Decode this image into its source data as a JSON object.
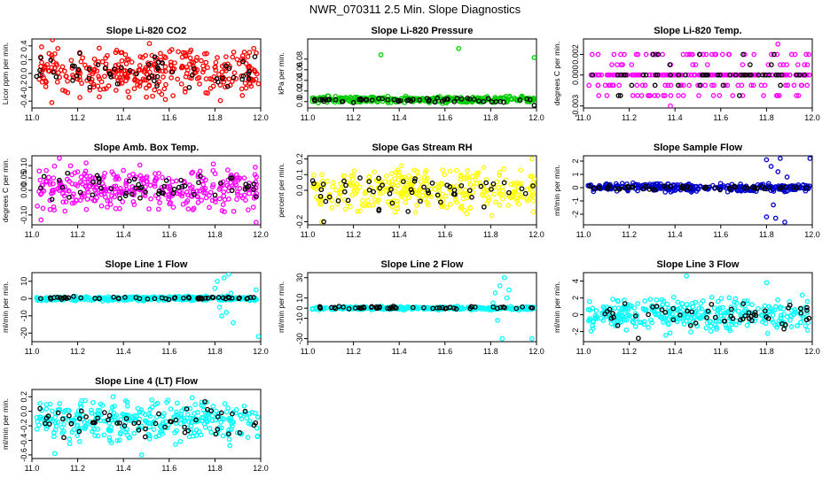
{
  "page_title": "NWR_070311  2.5 Min. Slope Diagnostics",
  "chart_data": [
    {
      "type": "scatter",
      "title": "Slope Li-820 CO2",
      "ylabel": "Licor ppm per min.",
      "xlim": [
        11.0,
        12.0
      ],
      "ylim": [
        -0.5,
        0.5
      ],
      "xticks": [
        11.0,
        11.2,
        11.4,
        11.6,
        11.8,
        12.0
      ],
      "xtick_labels": [
        "11.0",
        "11.2",
        "11.4",
        "11.6",
        "11.8",
        "12.0"
      ],
      "yticks": [
        -0.4,
        -0.2,
        0.0,
        0.2,
        0.4
      ],
      "ytick_labels": [
        "-0.4",
        "-0.2",
        "0.0",
        "0.2",
        "0.4"
      ],
      "series": [
        {
          "name": "all",
          "color": "#ff0000",
          "n": 340,
          "center": 0.02,
          "spread": 0.42,
          "seed": 11,
          "outliers": []
        },
        {
          "name": "selected",
          "color": "#000000",
          "n": 55,
          "center": 0.03,
          "spread": 0.3,
          "seed": 12,
          "outliers": []
        }
      ]
    },
    {
      "type": "scatter",
      "title": "Slope Li-820 Pressure",
      "ylabel": "kPa per min.",
      "xlim": [
        11.0,
        12.0
      ],
      "ylim": [
        -0.012,
        0.118
      ],
      "xticks": [
        11.0,
        11.2,
        11.4,
        11.6,
        11.8,
        12.0
      ],
      "xtick_labels": [
        "11.0",
        "11.2",
        "11.4",
        "11.6",
        "11.8",
        "12.0"
      ],
      "yticks": [
        0.0,
        0.02,
        0.04,
        0.06,
        0.08
      ],
      "ytick_labels": [
        "0.0",
        "0.02",
        "0.04",
        "0.06",
        "0.08"
      ],
      "series": [
        {
          "name": "all",
          "color": "#00cc00",
          "n": 330,
          "center": 0.004,
          "spread": 0.007,
          "seed": 21,
          "outliers": [
            [
              11.32,
              0.088
            ],
            [
              11.66,
              0.1
            ],
            [
              11.99,
              0.083
            ]
          ]
        },
        {
          "name": "selected",
          "color": "#000000",
          "n": 55,
          "center": 0.003,
          "spread": 0.005,
          "seed": 22,
          "outliers": [
            [
              11.99,
              -0.007
            ]
          ]
        }
      ]
    },
    {
      "type": "scatter",
      "title": "Slope Li-820 Temp.",
      "ylabel": "degrees C per min.",
      "xlim": [
        11.0,
        12.0
      ],
      "ylim": [
        -0.0032,
        0.0035
      ],
      "xticks": [
        11.0,
        11.2,
        11.4,
        11.6,
        11.8,
        12.0
      ],
      "xtick_labels": [
        "11.0",
        "11.2",
        "11.4",
        "11.6",
        "11.8",
        "12.0"
      ],
      "yticks": [
        -0.003,
        0.0,
        0.002
      ],
      "ytick_labels": [
        "-0.003",
        "0.000",
        "0.002"
      ],
      "levels": [
        -0.002,
        -0.001,
        0.0,
        0.001,
        0.002
      ],
      "series": [
        {
          "name": "all",
          "color": "#ff00ff",
          "n": 300,
          "center": 0,
          "spread": 0,
          "seed": 31,
          "quantized": true,
          "outliers": [
            [
              11.38,
              -0.003
            ],
            [
              11.85,
              0.003
            ]
          ]
        },
        {
          "name": "selected",
          "color": "#000000",
          "n": 55,
          "center": 0,
          "spread": 0,
          "seed": 32,
          "quantized": true,
          "outliers": []
        }
      ]
    },
    {
      "type": "scatter",
      "title": "Slope Amb. Box Temp.",
      "ylabel": "degrees C per min.",
      "xlim": [
        11.0,
        12.0
      ],
      "ylim": [
        -0.14,
        0.14
      ],
      "xticks": [
        11.0,
        11.2,
        11.4,
        11.6,
        11.8,
        12.0
      ],
      "xtick_labels": [
        "11.0",
        "11.2",
        "11.4",
        "11.6",
        "11.8",
        "12.0"
      ],
      "yticks": [
        -0.1,
        0.0,
        0.05,
        0.1
      ],
      "ytick_labels": [
        "-0.10",
        "0.00",
        "0.05",
        "0.10"
      ],
      "series": [
        {
          "name": "all",
          "color": "#ff00ff",
          "n": 340,
          "center": 0.005,
          "spread": 0.1,
          "seed": 41,
          "outliers": [
            [
              11.04,
              -0.12
            ],
            [
              11.12,
              0.13
            ],
            [
              11.98,
              -0.13
            ]
          ]
        },
        {
          "name": "selected",
          "color": "#000000",
          "n": 55,
          "center": 0.01,
          "spread": 0.06,
          "seed": 42,
          "outliers": []
        }
      ]
    },
    {
      "type": "scatter",
      "title": "Slope Gas Stream RH",
      "ylabel": "percent per min.",
      "xlim": [
        11.0,
        12.0
      ],
      "ylim": [
        -0.22,
        0.22
      ],
      "xticks": [
        11.0,
        11.2,
        11.4,
        11.6,
        11.8,
        12.0
      ],
      "xtick_labels": [
        "11.0",
        "11.2",
        "11.4",
        "11.6",
        "11.8",
        "12.0"
      ],
      "yticks": [
        -0.2,
        0.0,
        0.1,
        0.2
      ],
      "ytick_labels": [
        "-0.2",
        "0.0",
        "0.1",
        "0.2"
      ],
      "series": [
        {
          "name": "all",
          "color": "#ffff00",
          "n": 330,
          "center": 0.0,
          "spread": 0.16,
          "seed": 51,
          "outliers": [
            [
              11.06,
              -0.2
            ],
            [
              11.98,
              0.2
            ]
          ]
        },
        {
          "name": "selected",
          "color": "#000000",
          "n": 55,
          "center": 0.0,
          "spread": 0.14,
          "seed": 52,
          "outliers": [
            [
              11.07,
              -0.2
            ]
          ]
        }
      ]
    },
    {
      "type": "scatter",
      "title": "Slope Sample Flow",
      "ylabel": "ml/min per min.",
      "xlim": [
        11.0,
        12.0
      ],
      "ylim": [
        -2.8,
        2.4
      ],
      "xticks": [
        11.0,
        11.2,
        11.4,
        11.6,
        11.8,
        12.0
      ],
      "xtick_labels": [
        "11.0",
        "11.2",
        "11.4",
        "11.6",
        "11.8",
        "12.0"
      ],
      "yticks": [
        -2,
        -1,
        0,
        1,
        2
      ],
      "ytick_labels": [
        "-2",
        "-1",
        "0",
        "1",
        "2"
      ],
      "series": [
        {
          "name": "all",
          "color": "#0000cc",
          "n": 330,
          "center": 0.0,
          "spread": 0.35,
          "seed": 61,
          "outliers": [
            [
              11.8,
              2.1
            ],
            [
              11.82,
              1.6
            ],
            [
              11.84,
              -2.3
            ],
            [
              11.86,
              2.2
            ],
            [
              11.88,
              -2.6
            ],
            [
              11.85,
              1.2
            ],
            [
              11.8,
              -2.2
            ],
            [
              11.83,
              -1.3
            ],
            [
              11.99,
              2.2
            ],
            [
              11.89,
              0.8
            ]
          ]
        },
        {
          "name": "selected",
          "color": "#000000",
          "n": 55,
          "center": 0.0,
          "spread": 0.2,
          "seed": 62,
          "outliers": []
        }
      ]
    },
    {
      "type": "scatter",
      "title": "Slope Line 1 Flow",
      "ylabel": "ml/min per min.",
      "xlim": [
        11.0,
        12.0
      ],
      "ylim": [
        -25,
        15
      ],
      "xticks": [
        11.0,
        11.2,
        11.4,
        11.6,
        11.8,
        12.0
      ],
      "xtick_labels": [
        "11.0",
        "11.2",
        "11.4",
        "11.6",
        "11.8",
        "12.0"
      ],
      "yticks": [
        -20,
        -10,
        0,
        10
      ],
      "ytick_labels": [
        "-20",
        "-10",
        "0",
        "10"
      ],
      "series": [
        {
          "name": "all",
          "color": "#00ffff",
          "n": 330,
          "center": 0.0,
          "spread": 1.5,
          "seed": 71,
          "outliers": [
            [
              11.8,
              6
            ],
            [
              11.82,
              -5
            ],
            [
              11.84,
              12
            ],
            [
              11.86,
              14
            ],
            [
              11.83,
              -10
            ],
            [
              11.85,
              -8
            ],
            [
              11.87,
              3
            ],
            [
              11.81,
              10
            ],
            [
              11.99,
              -22
            ],
            [
              11.98,
              5
            ],
            [
              11.88,
              -14
            ]
          ]
        },
        {
          "name": "selected",
          "color": "#000000",
          "n": 55,
          "center": 0.3,
          "spread": 1.0,
          "seed": 72,
          "outliers": []
        }
      ]
    },
    {
      "type": "scatter",
      "title": "Slope Line 2 Flow",
      "ylabel": "ml/min per min.",
      "xlim": [
        11.0,
        12.0
      ],
      "ylim": [
        -33,
        35
      ],
      "xticks": [
        11.0,
        11.2,
        11.4,
        11.6,
        11.8,
        12.0
      ],
      "xtick_labels": [
        "11.0",
        "11.2",
        "11.4",
        "11.6",
        "11.8",
        "12.0"
      ],
      "yticks": [
        -30,
        -10,
        0,
        10,
        30
      ],
      "ytick_labels": [
        "-30",
        "-10",
        "0",
        "10",
        "30"
      ],
      "series": [
        {
          "name": "all",
          "color": "#00ffff",
          "n": 330,
          "center": 0.0,
          "spread": 2.0,
          "seed": 81,
          "outliers": [
            [
              11.82,
              15
            ],
            [
              11.84,
              22
            ],
            [
              11.86,
              30
            ],
            [
              11.83,
              -12
            ],
            [
              11.85,
              -30
            ],
            [
              11.87,
              10
            ],
            [
              11.81,
              5
            ],
            [
              11.98,
              -30
            ],
            [
              11.88,
              18
            ]
          ]
        },
        {
          "name": "selected",
          "color": "#000000",
          "n": 55,
          "center": 0.5,
          "spread": 1.5,
          "seed": 82,
          "outliers": []
        }
      ]
    },
    {
      "type": "scatter",
      "title": "Slope Line 3 Flow",
      "ylabel": "ml/min per min.",
      "xlim": [
        11.0,
        12.0
      ],
      "ylim": [
        -3.2,
        5
      ],
      "xticks": [
        11.0,
        11.2,
        11.4,
        11.6,
        11.8,
        12.0
      ],
      "xtick_labels": [
        "11.0",
        "11.2",
        "11.4",
        "11.6",
        "11.8",
        "12.0"
      ],
      "yticks": [
        -2,
        0,
        2,
        4
      ],
      "ytick_labels": [
        "-2",
        "0",
        "2",
        "4"
      ],
      "series": [
        {
          "name": "all",
          "color": "#00ffff",
          "n": 340,
          "center": 0.0,
          "spread": 2.4,
          "seed": 91,
          "outliers": [
            [
              11.45,
              4.6
            ],
            [
              11.8,
              3.8
            ]
          ]
        },
        {
          "name": "selected",
          "color": "#000000",
          "n": 55,
          "center": 0.0,
          "spread": 2.0,
          "seed": 92,
          "outliers": [
            [
              11.24,
              -2.8
            ]
          ]
        }
      ]
    },
    {
      "type": "scatter",
      "title": "Slope Line 4 (LT) Flow",
      "ylabel": "ml/min per min.",
      "xlim": [
        11.0,
        12.0
      ],
      "ylim": [
        -0.65,
        0.3
      ],
      "xticks": [
        11.0,
        11.2,
        11.4,
        11.6,
        11.8,
        12.0
      ],
      "xtick_labels": [
        "11.0",
        "11.2",
        "11.4",
        "11.6",
        "11.8",
        "12.0"
      ],
      "yticks": [
        -0.6,
        -0.4,
        -0.2,
        0.0,
        0.2
      ],
      "ytick_labels": [
        "-0.6",
        "-0.4",
        "-0.2",
        "0.0",
        "0.2"
      ],
      "series": [
        {
          "name": "all",
          "color": "#00ffff",
          "n": 340,
          "center": -0.12,
          "spread": 0.34,
          "seed": 101,
          "outliers": [
            [
              11.1,
              -0.58
            ],
            [
              11.48,
              -0.6
            ]
          ]
        },
        {
          "name": "selected",
          "color": "#000000",
          "n": 55,
          "center": -0.12,
          "spread": 0.26,
          "seed": 102,
          "outliers": []
        }
      ]
    }
  ]
}
